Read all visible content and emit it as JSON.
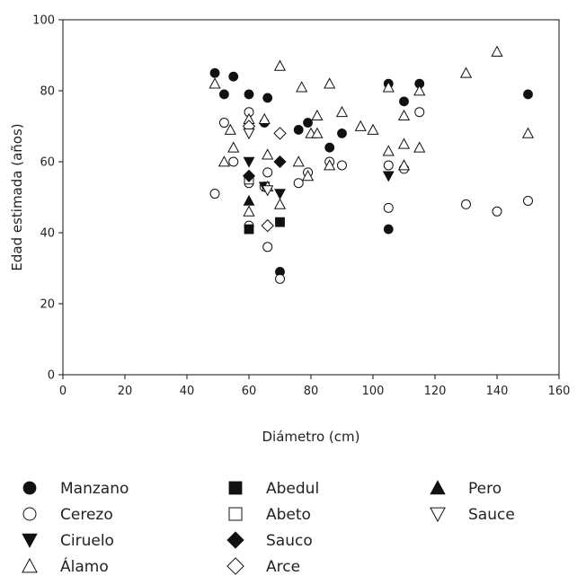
{
  "chart_data": {
    "type": "scatter",
    "title": "",
    "xlabel": "Diámetro (cm)",
    "ylabel": "Edad estimada (años)",
    "xlim": [
      0,
      160
    ],
    "ylim": [
      0,
      100
    ],
    "x_ticks": [
      0,
      20,
      40,
      60,
      80,
      100,
      120,
      140,
      160
    ],
    "y_ticks": [
      0,
      20,
      40,
      60,
      80,
      100
    ],
    "grid": false,
    "legend_position": "bottom",
    "series": [
      {
        "name": "Manzano",
        "marker": "circle-filled",
        "points": [
          [
            49,
            85
          ],
          [
            52,
            79
          ],
          [
            55,
            84
          ],
          [
            60,
            79
          ],
          [
            65,
            71
          ],
          [
            66,
            78
          ],
          [
            70,
            29
          ],
          [
            76,
            69
          ],
          [
            79,
            71
          ],
          [
            86,
            64
          ],
          [
            90,
            68
          ],
          [
            105,
            82
          ],
          [
            105,
            41
          ],
          [
            110,
            77
          ],
          [
            115,
            82
          ],
          [
            150,
            79
          ]
        ]
      },
      {
        "name": "Cerezo",
        "marker": "circle-open",
        "points": [
          [
            49,
            51
          ],
          [
            52,
            71
          ],
          [
            55,
            60
          ],
          [
            60,
            74
          ],
          [
            60,
            54
          ],
          [
            60,
            42
          ],
          [
            65,
            53
          ],
          [
            66,
            57
          ],
          [
            66,
            36
          ],
          [
            70,
            27
          ],
          [
            76,
            54
          ],
          [
            79,
            57
          ],
          [
            86,
            60
          ],
          [
            90,
            59
          ],
          [
            105,
            59
          ],
          [
            105,
            47
          ],
          [
            110,
            58
          ],
          [
            115,
            74
          ],
          [
            130,
            48
          ],
          [
            140,
            46
          ],
          [
            150,
            49
          ]
        ]
      },
      {
        "name": "Ciruelo",
        "marker": "triangle-down-filled",
        "points": [
          [
            60,
            60
          ],
          [
            65,
            53
          ],
          [
            70,
            51
          ],
          [
            105,
            56
          ]
        ]
      },
      {
        "name": "Álamo",
        "marker": "triangle-up-open",
        "points": [
          [
            49,
            82
          ],
          [
            52,
            60
          ],
          [
            55,
            64
          ],
          [
            54,
            69
          ],
          [
            60,
            72
          ],
          [
            60,
            46
          ],
          [
            65,
            72
          ],
          [
            66,
            62
          ],
          [
            66,
            53
          ],
          [
            70,
            87
          ],
          [
            70,
            48
          ],
          [
            76,
            60
          ],
          [
            77,
            81
          ],
          [
            79,
            56
          ],
          [
            80,
            68
          ],
          [
            82,
            73
          ],
          [
            86,
            82
          ],
          [
            86,
            59
          ],
          [
            90,
            74
          ],
          [
            82,
            68
          ],
          [
            96,
            70
          ],
          [
            100,
            69
          ],
          [
            105,
            81
          ],
          [
            105,
            63
          ],
          [
            110,
            73
          ],
          [
            110,
            65
          ],
          [
            110,
            59
          ],
          [
            115,
            80
          ],
          [
            115,
            64
          ],
          [
            130,
            85
          ],
          [
            140,
            91
          ],
          [
            150,
            68
          ]
        ]
      },
      {
        "name": "Abedul",
        "marker": "square-filled",
        "points": [
          [
            60,
            41
          ],
          [
            70,
            43
          ]
        ]
      },
      {
        "name": "Abeto",
        "marker": "square-open",
        "points": [
          [
            60,
            55
          ]
        ]
      },
      {
        "name": "Sauco",
        "marker": "diamond-filled",
        "points": [
          [
            60,
            56
          ],
          [
            70,
            60
          ]
        ]
      },
      {
        "name": "Arce",
        "marker": "diamond-open",
        "points": [
          [
            60,
            70
          ],
          [
            66,
            42
          ],
          [
            70,
            68
          ]
        ]
      },
      {
        "name": "Pero",
        "marker": "triangle-up-filled",
        "points": [
          [
            60,
            49
          ]
        ]
      },
      {
        "name": "Sauce",
        "marker": "triangle-down-open",
        "points": [
          [
            60,
            68
          ],
          [
            66,
            52
          ]
        ]
      }
    ]
  },
  "legend": {
    "items": [
      {
        "label": "Manzano",
        "marker": "circle-filled"
      },
      {
        "label": "Cerezo",
        "marker": "circle-open"
      },
      {
        "label": "Ciruelo",
        "marker": "triangle-down-filled"
      },
      {
        "label": "Álamo",
        "marker": "triangle-up-open"
      },
      {
        "label": "Abedul",
        "marker": "square-filled"
      },
      {
        "label": "Abeto",
        "marker": "square-open"
      },
      {
        "label": "Sauco",
        "marker": "diamond-filled"
      },
      {
        "label": "Arce",
        "marker": "diamond-open"
      },
      {
        "label": "Pero",
        "marker": "triangle-up-filled"
      },
      {
        "label": "Sauce",
        "marker": "triangle-down-open"
      }
    ]
  }
}
